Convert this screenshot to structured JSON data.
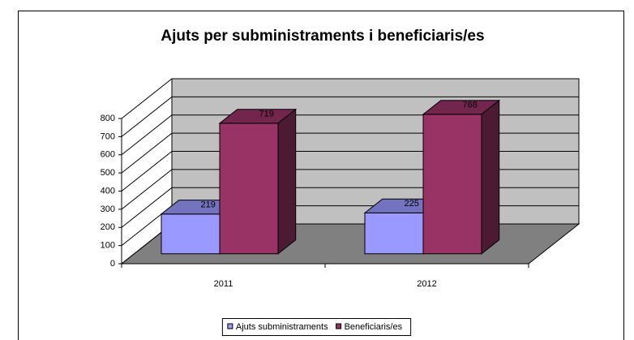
{
  "chart_data": {
    "type": "bar3d",
    "title": "Ajuts per subministraments i beneficiaris/es",
    "categories": [
      "2011",
      "2012"
    ],
    "series": [
      {
        "name": "Ajuts subministraments",
        "color": "#9999ff",
        "values": [
          219,
          225
        ]
      },
      {
        "name": "Beneficiaris/es",
        "color": "#993366",
        "values": [
          719,
          768
        ]
      }
    ],
    "ylim": [
      0,
      800
    ],
    "yticks": [
      0,
      100,
      200,
      300,
      400,
      500,
      600,
      700,
      800
    ],
    "grid": true,
    "legend": "bottom"
  }
}
